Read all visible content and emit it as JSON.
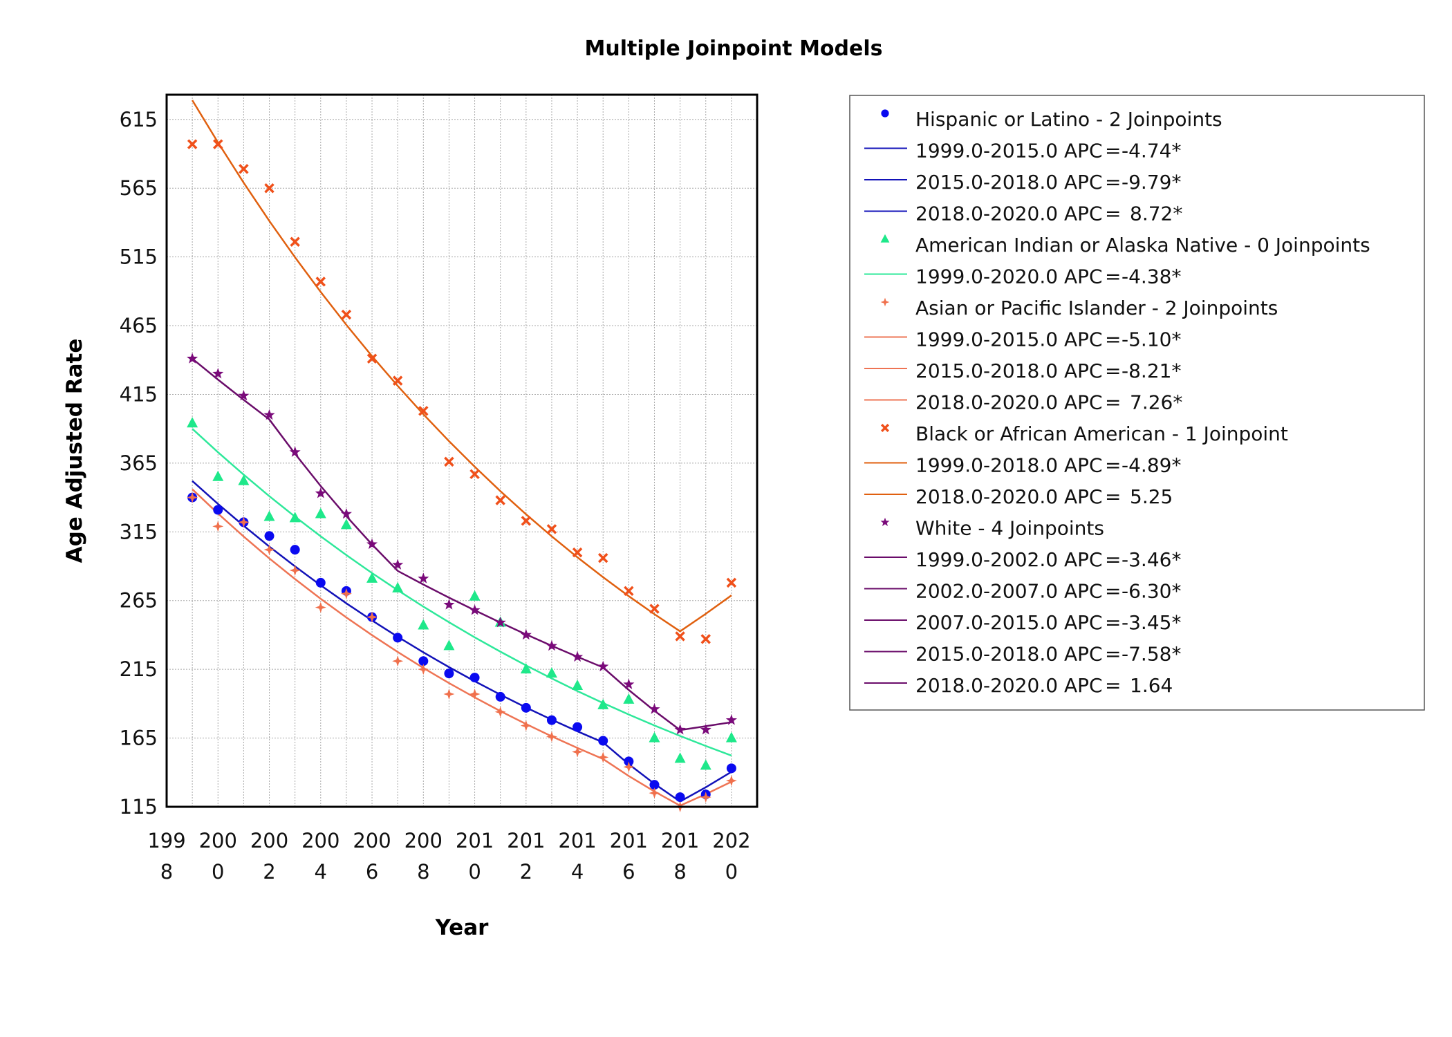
{
  "chart_data": {
    "type": "scatter",
    "title": "Multiple Joinpoint Models",
    "xlabel": "Year",
    "ylabel": "Age Adjusted Rate",
    "xlim": [
      1998,
      2021
    ],
    "ylim": [
      115,
      633
    ],
    "x_ticks": [
      "1998",
      "2000",
      "2002",
      "2004",
      "2006",
      "2008",
      "2010",
      "2012",
      "2014",
      "2016",
      "2018",
      "2020"
    ],
    "y_ticks": [
      115,
      165,
      215,
      265,
      315,
      365,
      415,
      465,
      515,
      565,
      615
    ],
    "grid": true,
    "legend_position": "right",
    "x": [
      1999,
      2000,
      2001,
      2002,
      2003,
      2004,
      2005,
      2006,
      2007,
      2008,
      2009,
      2010,
      2011,
      2012,
      2013,
      2014,
      2015,
      2016,
      2017,
      2018,
      2019,
      2020
    ],
    "series": [
      {
        "name": "Hispanic or Latino - 2 Joinpoints",
        "marker": "circle",
        "marker_color": "#0a0af0",
        "line_color": "#1212b8",
        "values": [
          340,
          331,
          322,
          312,
          302,
          278,
          272,
          253,
          238,
          221,
          212,
          209,
          195,
          187,
          178,
          173,
          163,
          148,
          131,
          122,
          124,
          143
        ],
        "fit_start": 352,
        "segments": [
          {
            "label": "1999.0-2015.0 APC",
            "value": "-4.74*",
            "from": 1999,
            "to": 2015,
            "apc": -4.74
          },
          {
            "label": "2015.0-2018.0 APC",
            "value": "-9.79*",
            "from": 2015,
            "to": 2018,
            "apc": -9.79
          },
          {
            "label": "2018.0-2020.0 APC",
            "value": "8.72*",
            "from": 2018,
            "to": 2020,
            "apc": 8.72
          }
        ]
      },
      {
        "name": "American Indian or Alaska Native - 0 Joinpoints",
        "marker": "triangle",
        "marker_color": "#1ee88a",
        "line_color": "#2ee89a",
        "values": [
          394,
          355,
          352,
          326,
          325,
          328,
          320,
          281,
          274,
          247,
          232,
          268,
          249,
          215,
          212,
          203,
          189,
          193,
          165,
          150,
          145,
          165
        ],
        "fit_start": 390,
        "segments": [
          {
            "label": "1999.0-2020.0 APC",
            "value": "-4.38*",
            "from": 1999,
            "to": 2020,
            "apc": -4.38
          }
        ]
      },
      {
        "name": "Asian or Pacific Islander - 2 Joinpoints",
        "marker": "sparkle",
        "marker_color": "#f0704c",
        "line_color": "#ee7454",
        "values": [
          340,
          319,
          322,
          302,
          287,
          260,
          270,
          253,
          221,
          215,
          197,
          197,
          184,
          174,
          166,
          155,
          151,
          144,
          125,
          115,
          122,
          134
        ],
        "fit_start": 346,
        "segments": [
          {
            "label": "1999.0-2015.0 APC",
            "value": "-5.10*",
            "from": 1999,
            "to": 2015,
            "apc": -5.1
          },
          {
            "label": "2015.0-2018.0 APC",
            "value": "-8.21*",
            "from": 2015,
            "to": 2018,
            "apc": -8.21
          },
          {
            "label": "2018.0-2020.0 APC",
            "value": "7.26*",
            "from": 2018,
            "to": 2020,
            "apc": 7.26
          }
        ]
      },
      {
        "name": "Black or African American - 1 Joinpoint",
        "marker": "x",
        "marker_color": "#f0501a",
        "line_color": "#e0600f",
        "values": [
          597,
          597,
          579,
          565,
          526,
          497,
          473,
          441,
          425,
          403,
          366,
          357,
          338,
          323,
          317,
          300,
          296,
          272,
          259,
          239,
          237,
          278
        ],
        "fit_start": 629,
        "segments": [
          {
            "label": "1999.0-2018.0 APC",
            "value": "-4.89*",
            "from": 1999,
            "to": 2018,
            "apc": -4.89
          },
          {
            "label": "2018.0-2020.0 APC",
            "value": "5.25",
            "from": 2018,
            "to": 2020,
            "apc": 5.25
          }
        ]
      },
      {
        "name": "White - 4 Joinpoints",
        "marker": "star",
        "marker_color": "#7a0a7a",
        "line_color": "#6a0c6a",
        "values": [
          441,
          430,
          414,
          400,
          373,
          343,
          328,
          306,
          291,
          281,
          262,
          258,
          249,
          240,
          232,
          224,
          217,
          204,
          186,
          171,
          171,
          178
        ],
        "fit_start": 441,
        "segments": [
          {
            "label": "1999.0-2002.0 APC",
            "value": "-3.46*",
            "from": 1999,
            "to": 2002,
            "apc": -3.46
          },
          {
            "label": "2002.0-2007.0 APC",
            "value": "-6.30*",
            "from": 2002,
            "to": 2007,
            "apc": -6.3
          },
          {
            "label": "2007.0-2015.0 APC",
            "value": "-3.45*",
            "from": 2007,
            "to": 2015,
            "apc": -3.45
          },
          {
            "label": "2015.0-2018.0 APC",
            "value": "-7.58*",
            "from": 2015,
            "to": 2018,
            "apc": -7.58
          },
          {
            "label": "2018.0-2020.0 APC",
            "value": "1.64",
            "from": 2018,
            "to": 2020,
            "apc": 1.64
          }
        ]
      }
    ]
  }
}
